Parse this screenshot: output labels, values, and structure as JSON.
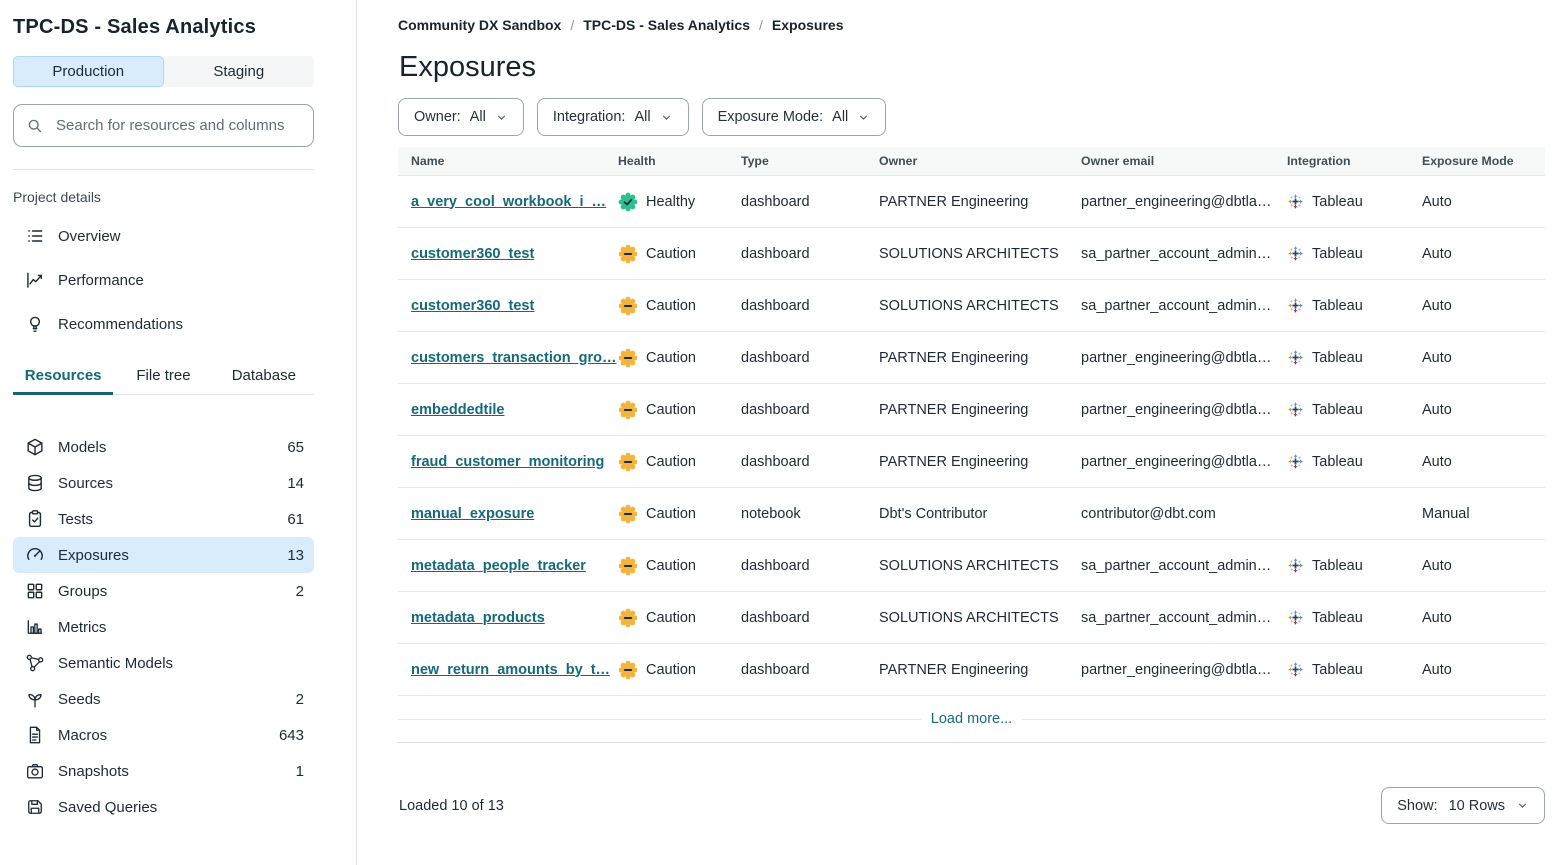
{
  "colors": {
    "accent_teal": "#15697B",
    "healthy_green": "#2FBE8E",
    "caution_amber": "#F2B43E",
    "selected_item_bg": "#D9ECFB",
    "production_toggle_bg": "#D8ECFB"
  },
  "sidebar": {
    "title": "TPC-DS - Sales Analytics",
    "environment_toggle": {
      "production": "Production",
      "staging": "Staging"
    },
    "search_placeholder": "Search for resources and columns",
    "project_details_label": "Project details",
    "detail_items": [
      {
        "label": "Overview",
        "icon": "list-icon"
      },
      {
        "label": "Performance",
        "icon": "line-chart-icon"
      },
      {
        "label": "Recommendations",
        "icon": "lightbulb-icon"
      }
    ],
    "tabs": [
      {
        "label": "Resources",
        "active": true
      },
      {
        "label": "File tree",
        "active": false
      },
      {
        "label": "Database",
        "active": false
      }
    ],
    "resources": [
      {
        "label": "Models",
        "count": "65",
        "icon": "cube-icon",
        "selected": false
      },
      {
        "label": "Sources",
        "count": "14",
        "icon": "database-icon",
        "selected": false
      },
      {
        "label": "Tests",
        "count": "61",
        "icon": "clipboard-check-icon",
        "selected": false
      },
      {
        "label": "Exposures",
        "count": "13",
        "icon": "gauge-icon",
        "selected": true
      },
      {
        "label": "Groups",
        "count": "2",
        "icon": "grid-icon",
        "selected": false
      },
      {
        "label": "Metrics",
        "count": "",
        "icon": "bar-chart-icon",
        "selected": false
      },
      {
        "label": "Semantic Models",
        "count": "",
        "icon": "network-icon",
        "selected": false
      },
      {
        "label": "Seeds",
        "count": "2",
        "icon": "sprout-icon",
        "selected": false
      },
      {
        "label": "Macros",
        "count": "643",
        "icon": "file-text-icon",
        "selected": false
      },
      {
        "label": "Snapshots",
        "count": "1",
        "icon": "camera-icon",
        "selected": false
      },
      {
        "label": "Saved Queries",
        "count": "",
        "icon": "save-icon",
        "selected": false
      }
    ]
  },
  "main": {
    "breadcrumb_separator": "/",
    "breadcrumb": [
      {
        "label": "Community DX Sandbox"
      },
      {
        "label": "TPC-DS - Sales Analytics"
      },
      {
        "label": "Exposures"
      }
    ],
    "title": "Exposures",
    "filters": [
      {
        "label": "Owner:",
        "value": "All"
      },
      {
        "label": "Integration:",
        "value": "All"
      },
      {
        "label": "Exposure Mode:",
        "value": "All"
      }
    ],
    "table": {
      "columns": [
        "Name",
        "Health",
        "Type",
        "Owner",
        "Owner email",
        "Integration",
        "Exposure Mode"
      ],
      "rows": [
        {
          "name": "a_very_cool_workbook_i_…",
          "health": "Healthy",
          "health_status": "healthy",
          "type": "dashboard",
          "owner": "PARTNER Engineering",
          "owner_email": "partner_engineering@dbtla…",
          "integration": "Tableau",
          "exposure_mode": "Auto"
        },
        {
          "name": "customer360_test",
          "health": "Caution",
          "health_status": "caution",
          "type": "dashboard",
          "owner": "SOLUTIONS ARCHITECTS",
          "owner_email": "sa_partner_account_admin…",
          "integration": "Tableau",
          "exposure_mode": "Auto"
        },
        {
          "name": "customer360_test",
          "health": "Caution",
          "health_status": "caution",
          "type": "dashboard",
          "owner": "SOLUTIONS ARCHITECTS",
          "owner_email": "sa_partner_account_admin…",
          "integration": "Tableau",
          "exposure_mode": "Auto"
        },
        {
          "name": "customers_transaction_gro…",
          "health": "Caution",
          "health_status": "caution",
          "type": "dashboard",
          "owner": "PARTNER Engineering",
          "owner_email": "partner_engineering@dbtla…",
          "integration": "Tableau",
          "exposure_mode": "Auto"
        },
        {
          "name": "embeddedtile",
          "health": "Caution",
          "health_status": "caution",
          "type": "dashboard",
          "owner": "PARTNER Engineering",
          "owner_email": "partner_engineering@dbtla…",
          "integration": "Tableau",
          "exposure_mode": "Auto"
        },
        {
          "name": "fraud_customer_monitoring",
          "health": "Caution",
          "health_status": "caution",
          "type": "dashboard",
          "owner": "PARTNER Engineering",
          "owner_email": "partner_engineering@dbtla…",
          "integration": "Tableau",
          "exposure_mode": "Auto"
        },
        {
          "name": "manual_exposure",
          "health": "Caution",
          "health_status": "caution",
          "type": "notebook",
          "owner": "Dbt's Contributor",
          "owner_email": "contributor@dbt.com",
          "integration": "",
          "exposure_mode": "Manual"
        },
        {
          "name": "metadata_people_tracker",
          "health": "Caution",
          "health_status": "caution",
          "type": "dashboard",
          "owner": "SOLUTIONS ARCHITECTS",
          "owner_email": "sa_partner_account_admin…",
          "integration": "Tableau",
          "exposure_mode": "Auto"
        },
        {
          "name": "metadata_products",
          "health": "Caution",
          "health_status": "caution",
          "type": "dashboard",
          "owner": "SOLUTIONS ARCHITECTS",
          "owner_email": "sa_partner_account_admin…",
          "integration": "Tableau",
          "exposure_mode": "Auto"
        },
        {
          "name": "new_return_amounts_by_t…",
          "health": "Caution",
          "health_status": "caution",
          "type": "dashboard",
          "owner": "PARTNER Engineering",
          "owner_email": "partner_engineering@dbtla…",
          "integration": "Tableau",
          "exposure_mode": "Auto"
        }
      ]
    },
    "load_more_label": "Load more...",
    "footer": {
      "loaded_text": "Loaded 10 of 13",
      "show_label": "Show:",
      "show_value": "10 Rows"
    }
  }
}
